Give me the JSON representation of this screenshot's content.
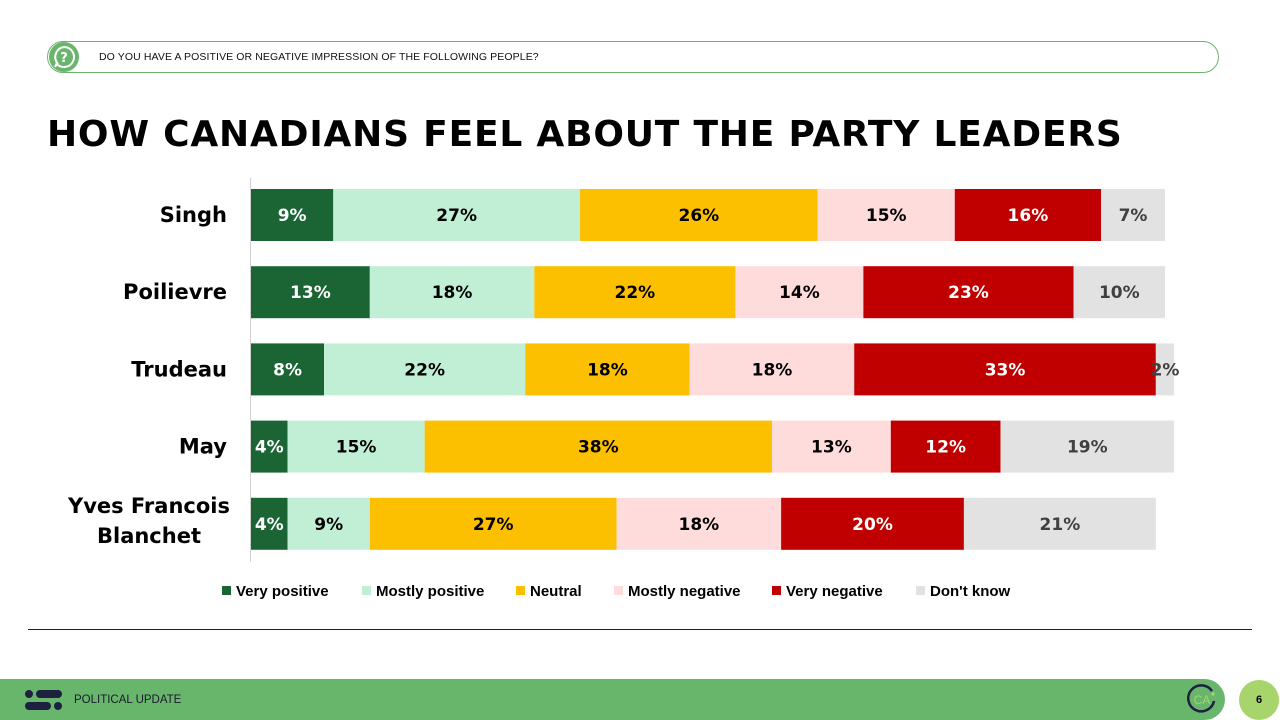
{
  "header": {
    "question_icon": "question-chat-icon",
    "question": "DO YOU HAVE A POSITIVE OR NEGATIVE IMPRESSION OF THE FOLLOWING PEOPLE?",
    "title": "HOW CANADIANS FEEL ABOUT THE PARTY LEADERS"
  },
  "footer": {
    "logo_icon": "abacus-logo-icon",
    "label": "POLITICAL UPDATE",
    "badge_icon": "ca-logo-icon",
    "badge_text": "CA",
    "page_number": "6"
  },
  "chart_data": {
    "type": "bar",
    "orientation": "horizontal",
    "stacked": true,
    "title": "HOW CANADIANS FEEL ABOUT THE PARTY LEADERS",
    "xlabel": "",
    "ylabel": "",
    "categories": [
      "Singh",
      "Poilievre",
      "Trudeau",
      "May",
      "Yves Francois Blanchet"
    ],
    "series": [
      {
        "name": "Very positive",
        "color": "#1b6535",
        "label_color": "#ffffff",
        "values": [
          9,
          13,
          8,
          4,
          4
        ]
      },
      {
        "name": "Mostly positive",
        "color": "#c1efd6",
        "label_color": "#000000",
        "values": [
          27,
          18,
          22,
          15,
          9
        ]
      },
      {
        "name": "Neutral",
        "color": "#fdc000",
        "label_color": "#000000",
        "values": [
          26,
          22,
          18,
          38,
          27
        ]
      },
      {
        "name": "Mostly negative",
        "color": "#ffdcdc",
        "label_color": "#000000",
        "values": [
          15,
          14,
          18,
          13,
          18
        ]
      },
      {
        "name": "Very negative",
        "color": "#c00000",
        "label_color": "#ffffff",
        "values": [
          16,
          23,
          33,
          12,
          20
        ]
      },
      {
        "name": "Don't know",
        "color": "#e2e2e2",
        "label_color": "#404040",
        "values": [
          7,
          10,
          2,
          19,
          21
        ]
      }
    ],
    "value_suffix": "%",
    "xlim": [
      0,
      100
    ],
    "grid": false,
    "legend_position": "bottom"
  }
}
